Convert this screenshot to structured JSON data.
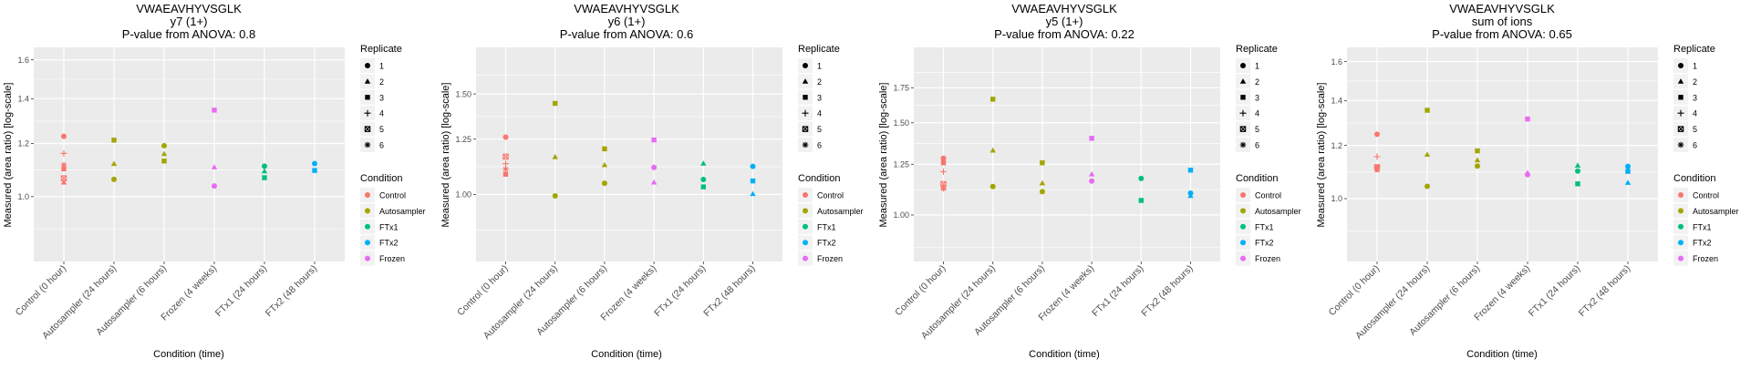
{
  "chart_data": [
    {
      "type": "scatter",
      "title": [
        "VWAEAVHYVSGLK",
        "y7 (1+)",
        "P-value from ANOVA: 0.8"
      ],
      "xlabel": "Condition (time)",
      "ylabel": "Measured (area ratio) [log-scale]",
      "yscale": "log",
      "ylim": [
        0.8,
        1.67
      ],
      "yticks": [
        1.0,
        1.2,
        1.4,
        1.6
      ],
      "ytick_labels": [
        "1.0",
        "1.2",
        "1.4",
        "1.6"
      ],
      "points": [
        {
          "cat": 0,
          "cond": "Control",
          "rep": 1,
          "y": 1.23
        },
        {
          "cat": 0,
          "cond": "Control",
          "rep": 2,
          "y": 1.05
        },
        {
          "cat": 0,
          "cond": "Control",
          "rep": 3,
          "y": 1.1
        },
        {
          "cat": 0,
          "cond": "Control",
          "rep": 4,
          "y": 1.16
        },
        {
          "cat": 0,
          "cond": "Control",
          "rep": 5,
          "y": 1.065
        },
        {
          "cat": 0,
          "cond": "Control",
          "rep": 6,
          "y": 1.115
        },
        {
          "cat": 1,
          "cond": "Autosampler",
          "rep": 1,
          "y": 1.061
        },
        {
          "cat": 1,
          "cond": "Autosampler",
          "rep": 2,
          "y": 1.119
        },
        {
          "cat": 1,
          "cond": "Autosampler",
          "rep": 3,
          "y": 1.214
        },
        {
          "cat": 2,
          "cond": "Autosampler",
          "rep": 1,
          "y": 1.191
        },
        {
          "cat": 2,
          "cond": "Autosampler",
          "rep": 2,
          "y": 1.158
        },
        {
          "cat": 2,
          "cond": "Autosampler",
          "rep": 3,
          "y": 1.13
        },
        {
          "cat": 3,
          "cond": "Frozen",
          "rep": 1,
          "y": 1.037
        },
        {
          "cat": 3,
          "cond": "Frozen",
          "rep": 2,
          "y": 1.106
        },
        {
          "cat": 3,
          "cond": "Frozen",
          "rep": 3,
          "y": 1.346
        },
        {
          "cat": 4,
          "cond": "FTx1",
          "rep": 1,
          "y": 1.11
        },
        {
          "cat": 4,
          "cond": "FTx1",
          "rep": 2,
          "y": 1.091
        },
        {
          "cat": 4,
          "cond": "FTx1",
          "rep": 3,
          "y": 1.067
        },
        {
          "cat": 5,
          "cond": "FTx2",
          "rep": 1,
          "y": 1.12
        },
        {
          "cat": 5,
          "cond": "FTx2",
          "rep": 3,
          "y": 1.094
        }
      ]
    },
    {
      "type": "scatter",
      "title": [
        "VWAEAVHYVSGLK",
        "y6 (1+)",
        "P-value from ANOVA: 0.6"
      ],
      "xlabel": "Condition (time)",
      "ylabel": "Measured (area ratio) [log-scale]",
      "yscale": "log",
      "ylim": [
        0.763,
        1.81
      ],
      "yticks": [
        1.0,
        1.25,
        1.5
      ],
      "ytick_labels": [
        "1.00",
        "1.25",
        "1.50"
      ],
      "points": [
        {
          "cat": 0,
          "cond": "Control",
          "rep": 1,
          "y": 1.26
        },
        {
          "cat": 0,
          "cond": "Control",
          "rep": 3,
          "y": 1.085
        },
        {
          "cat": 0,
          "cond": "Control",
          "rep": 4,
          "y": 1.132
        },
        {
          "cat": 0,
          "cond": "Control",
          "rep": 5,
          "y": 1.165
        },
        {
          "cat": 0,
          "cond": "Control",
          "rep": 6,
          "y": 1.108
        },
        {
          "cat": 1,
          "cond": "Autosampler",
          "rep": 1,
          "y": 0.994
        },
        {
          "cat": 1,
          "cond": "Autosampler",
          "rep": 2,
          "y": 1.163
        },
        {
          "cat": 1,
          "cond": "Autosampler",
          "rep": 3,
          "y": 1.444
        },
        {
          "cat": 2,
          "cond": "Autosampler",
          "rep": 1,
          "y": 1.046
        },
        {
          "cat": 2,
          "cond": "Autosampler",
          "rep": 2,
          "y": 1.126
        },
        {
          "cat": 2,
          "cond": "Autosampler",
          "rep": 3,
          "y": 1.202
        },
        {
          "cat": 3,
          "cond": "Frozen",
          "rep": 1,
          "y": 1.115
        },
        {
          "cat": 3,
          "cond": "Frozen",
          "rep": 2,
          "y": 1.05
        },
        {
          "cat": 3,
          "cond": "Frozen",
          "rep": 3,
          "y": 1.246
        },
        {
          "cat": 4,
          "cond": "FTx1",
          "rep": 1,
          "y": 1.062
        },
        {
          "cat": 4,
          "cond": "FTx1",
          "rep": 2,
          "y": 1.133
        },
        {
          "cat": 4,
          "cond": "FTx1",
          "rep": 3,
          "y": 1.031
        },
        {
          "cat": 5,
          "cond": "FTx2",
          "rep": 1,
          "y": 1.12
        },
        {
          "cat": 5,
          "cond": "FTx2",
          "rep": 2,
          "y": 1.002
        },
        {
          "cat": 5,
          "cond": "FTx2",
          "rep": 3,
          "y": 1.056
        }
      ]
    },
    {
      "type": "scatter",
      "title": [
        "VWAEAVHYVSGLK",
        "y5 (1+)",
        "P-value from ANOVA: 0.22"
      ],
      "xlabel": "Condition (time)",
      "ylabel": "Measured (area ratio) [log-scale]",
      "yscale": "log",
      "ylim": [
        0.815,
        2.09
      ],
      "yticks": [
        1.0,
        1.25,
        1.5,
        1.75
      ],
      "ytick_labels": [
        "1.00",
        "1.25",
        "1.50",
        "1.75"
      ],
      "points": [
        {
          "cat": 0,
          "cond": "Control",
          "rep": 1,
          "y": 1.283
        },
        {
          "cat": 0,
          "cond": "Control",
          "rep": 2,
          "y": 1.128
        },
        {
          "cat": 0,
          "cond": "Control",
          "rep": 3,
          "y": 1.258
        },
        {
          "cat": 0,
          "cond": "Control",
          "rep": 4,
          "y": 1.21
        },
        {
          "cat": 0,
          "cond": "Control",
          "rep": 5,
          "y": 1.146
        },
        {
          "cat": 0,
          "cond": "Control",
          "rep": 6,
          "y": 1.123
        },
        {
          "cat": 1,
          "cond": "Autosampler",
          "rep": 1,
          "y": 1.133
        },
        {
          "cat": 1,
          "cond": "Autosampler",
          "rep": 2,
          "y": 1.328
        },
        {
          "cat": 1,
          "cond": "Autosampler",
          "rep": 3,
          "y": 1.664
        },
        {
          "cat": 2,
          "cond": "Autosampler",
          "rep": 1,
          "y": 1.108
        },
        {
          "cat": 2,
          "cond": "Autosampler",
          "rep": 2,
          "y": 1.15
        },
        {
          "cat": 2,
          "cond": "Autosampler",
          "rep": 3,
          "y": 1.258
        },
        {
          "cat": 3,
          "cond": "Frozen",
          "rep": 1,
          "y": 1.161
        },
        {
          "cat": 3,
          "cond": "Frozen",
          "rep": 2,
          "y": 1.196
        },
        {
          "cat": 3,
          "cond": "Frozen",
          "rep": 3,
          "y": 1.401
        },
        {
          "cat": 4,
          "cond": "FTx1",
          "rep": 1,
          "y": 1.174
        },
        {
          "cat": 4,
          "cond": "FTx1",
          "rep": 3,
          "y": 1.066
        },
        {
          "cat": 5,
          "cond": "FTx2",
          "rep": 1,
          "y": 1.101
        },
        {
          "cat": 5,
          "cond": "FTx2",
          "rep": 2,
          "y": 1.088
        },
        {
          "cat": 5,
          "cond": "FTx2",
          "rep": 3,
          "y": 1.218
        }
      ]
    },
    {
      "type": "scatter",
      "title": [
        "VWAEAVHYVSGLK",
        "sum of ions",
        "P-value from ANOVA: 0.65"
      ],
      "xlabel": "Condition (time)",
      "ylabel": "Measured (area ratio) [log-scale]",
      "yscale": "log",
      "ylim": [
        0.806,
        1.68
      ],
      "yticks": [
        1.0,
        1.2,
        1.4,
        1.6
      ],
      "ytick_labels": [
        "1.0",
        "1.2",
        "1.4",
        "1.6"
      ],
      "points": [
        {
          "cat": 0,
          "cond": "Control",
          "rep": 1,
          "y": 1.247
        },
        {
          "cat": 0,
          "cond": "Control",
          "rep": 2,
          "y": 1.103
        },
        {
          "cat": 0,
          "cond": "Control",
          "rep": 3,
          "y": 1.113
        },
        {
          "cat": 0,
          "cond": "Control",
          "rep": 4,
          "y": 1.155
        },
        {
          "cat": 0,
          "cond": "Control",
          "rep": 5,
          "y": 1.114
        },
        {
          "cat": 1,
          "cond": "Autosampler",
          "rep": 1,
          "y": 1.043
        },
        {
          "cat": 1,
          "cond": "Autosampler",
          "rep": 2,
          "y": 1.163
        },
        {
          "cat": 1,
          "cond": "Autosampler",
          "rep": 3,
          "y": 1.354
        },
        {
          "cat": 2,
          "cond": "Autosampler",
          "rep": 1,
          "y": 1.118
        },
        {
          "cat": 2,
          "cond": "Autosampler",
          "rep": 2,
          "y": 1.141
        },
        {
          "cat": 2,
          "cond": "Autosampler",
          "rep": 3,
          "y": 1.178
        },
        {
          "cat": 3,
          "cond": "Frozen",
          "rep": 1,
          "y": 1.086
        },
        {
          "cat": 3,
          "cond": "Frozen",
          "rep": 2,
          "y": 1.092
        },
        {
          "cat": 3,
          "cond": "Frozen",
          "rep": 3,
          "y": 1.314
        },
        {
          "cat": 4,
          "cond": "FTx1",
          "rep": 1,
          "y": 1.099
        },
        {
          "cat": 4,
          "cond": "FTx1",
          "rep": 2,
          "y": 1.12
        },
        {
          "cat": 4,
          "cond": "FTx1",
          "rep": 3,
          "y": 1.052
        },
        {
          "cat": 5,
          "cond": "FTx2",
          "rep": 1,
          "y": 1.117
        },
        {
          "cat": 5,
          "cond": "FTx2",
          "rep": 2,
          "y": 1.056
        },
        {
          "cat": 5,
          "cond": "FTx2",
          "rep": 3,
          "y": 1.098
        }
      ]
    }
  ],
  "categories": [
    "Control (0 hour)",
    "Autosampler (24 hours)",
    "Autosampler (6 hours)",
    "Frozen (4 weeks)",
    "FTx1 (24 hours)",
    "FTx2 (48 hours)"
  ],
  "legend": {
    "replicate_title": "Replicate",
    "replicates": [
      "1",
      "2",
      "3",
      "4",
      "5",
      "6"
    ],
    "condition_title": "Condition",
    "conditions": [
      "Control",
      "Autosampler",
      "FTx1",
      "FTx2",
      "Frozen"
    ],
    "placement": "right"
  },
  "colors": {
    "Control": "#F8766D",
    "Autosampler": "#A3A500",
    "FTx1": "#00BF7D",
    "FTx2": "#00B0F6",
    "Frozen": "#E76BF3",
    "panel_bg": "#EBEBEB"
  }
}
